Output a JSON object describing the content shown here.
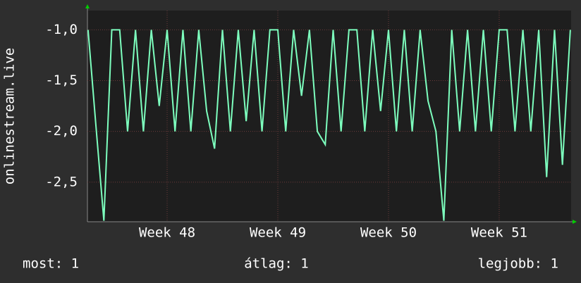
{
  "chart_data": {
    "type": "line",
    "y_label": "onlinestream.live",
    "x": [
      -5,
      -4.5,
      -4,
      -3.5,
      -3,
      -2.5,
      -2,
      -1.5,
      -1,
      -0.5,
      0,
      0.5,
      1,
      1.5,
      2,
      2.5,
      3,
      3.5,
      4,
      4.5,
      5,
      5.5,
      6,
      6.5,
      7,
      7.5,
      8,
      8.5,
      9,
      9.5,
      10,
      10.5,
      11,
      11.5,
      12,
      12.5,
      13,
      13.5,
      14,
      14.5,
      15,
      15.5,
      16,
      16.5,
      17,
      17.5,
      18,
      18.5,
      19,
      19.5,
      20,
      20.5,
      21,
      21.5,
      22,
      22.5,
      23,
      23.5,
      24,
      24.5,
      25,
      25.5
    ],
    "values": [
      -1,
      -1.95,
      -2.88,
      -1,
      -1,
      -2,
      -1,
      -2,
      -1,
      -1.75,
      -1,
      -2,
      -1,
      -2,
      -1,
      -1.8,
      -2.17,
      -1,
      -2,
      -1,
      -1.9,
      -1,
      -2,
      -1,
      -1,
      -2,
      -1,
      -1.65,
      -1,
      -2,
      -2.13,
      -1,
      -2,
      -1,
      -1,
      -2,
      -1,
      -1.8,
      -1,
      -2,
      -1,
      -2,
      -1,
      -1.7,
      -2,
      -2.88,
      -1,
      -2,
      -1,
      -2,
      -1,
      -2,
      -1,
      -1,
      -2,
      -1,
      -2,
      -1,
      -2.45,
      -1,
      -2.33,
      -1
    ],
    "color": "#7dffbe",
    "xlim": [
      -5.04,
      25.55
    ],
    "xticks": [
      {
        "value": 0,
        "label": "Week 48"
      },
      {
        "value": 7,
        "label": "Week 49"
      },
      {
        "value": 14,
        "label": "Week 50"
      },
      {
        "value": 21,
        "label": "Week 51"
      }
    ],
    "ylim": [
      -2.89,
      -0.81
    ],
    "yticks": [
      {
        "value": -1,
        "label": "-1,0"
      },
      {
        "value": -1.5,
        "label": "-1,5"
      },
      {
        "value": -2,
        "label": "-2,0"
      },
      {
        "value": -2.5,
        "label": "-2,5"
      }
    ],
    "grid": true,
    "annotations": [
      "most: 1",
      "átlag: 1",
      "legjobb: 1"
    ]
  }
}
